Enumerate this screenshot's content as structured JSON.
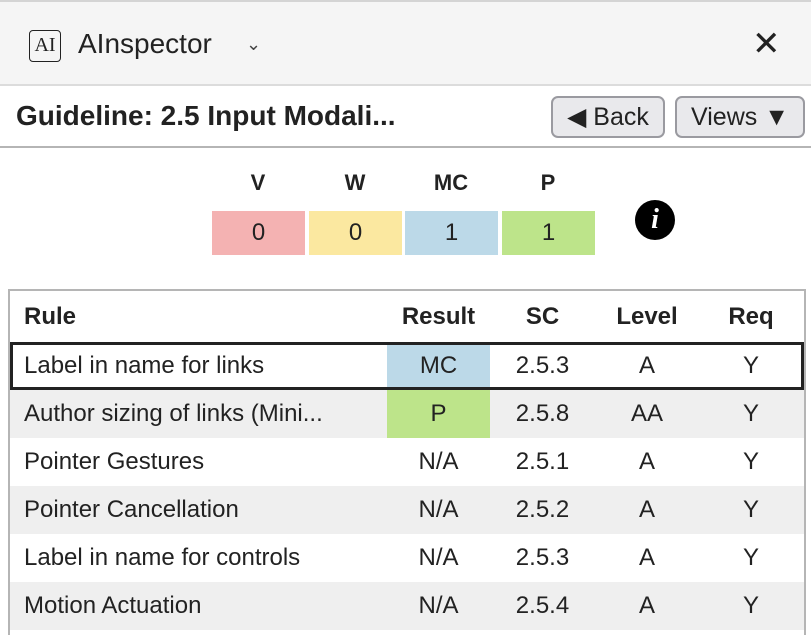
{
  "app": {
    "logo": "AI",
    "title": "AInspector",
    "chevron": "⌄",
    "close": "✕"
  },
  "guideline": {
    "title": "Guideline: 2.5 Input Modali...",
    "back_label": "◀ Back",
    "views_label": "Views ▼"
  },
  "summary": [
    {
      "label": "V",
      "value": "0",
      "color": "#f4b2b2"
    },
    {
      "label": "W",
      "value": "0",
      "color": "#fbe8a0"
    },
    {
      "label": "MC",
      "value": "1",
      "color": "#bcd9e8"
    },
    {
      "label": "P",
      "value": "1",
      "color": "#bde48a"
    }
  ],
  "info_icon": "i",
  "table": {
    "headers": [
      "Rule",
      "Result",
      "SC",
      "Level",
      "Req"
    ],
    "rows": [
      {
        "rule": "Label in name for links",
        "result": "MC",
        "sc": "2.5.3",
        "level": "A",
        "req": "Y",
        "result_color": "#bcd9e8",
        "selected": true
      },
      {
        "rule": "Author sizing of links (Mini...",
        "result": "P",
        "sc": "2.5.8",
        "level": "AA",
        "req": "Y",
        "result_color": "#bde48a"
      },
      {
        "rule": "Pointer Gestures",
        "result": "N/A",
        "sc": "2.5.1",
        "level": "A",
        "req": "Y"
      },
      {
        "rule": "Pointer Cancellation",
        "result": "N/A",
        "sc": "2.5.2",
        "level": "A",
        "req": "Y"
      },
      {
        "rule": "Label in name for controls",
        "result": "N/A",
        "sc": "2.5.3",
        "level": "A",
        "req": "Y"
      },
      {
        "rule": "Motion Actuation",
        "result": "N/A",
        "sc": "2.5.4",
        "level": "A",
        "req": "Y"
      }
    ]
  }
}
